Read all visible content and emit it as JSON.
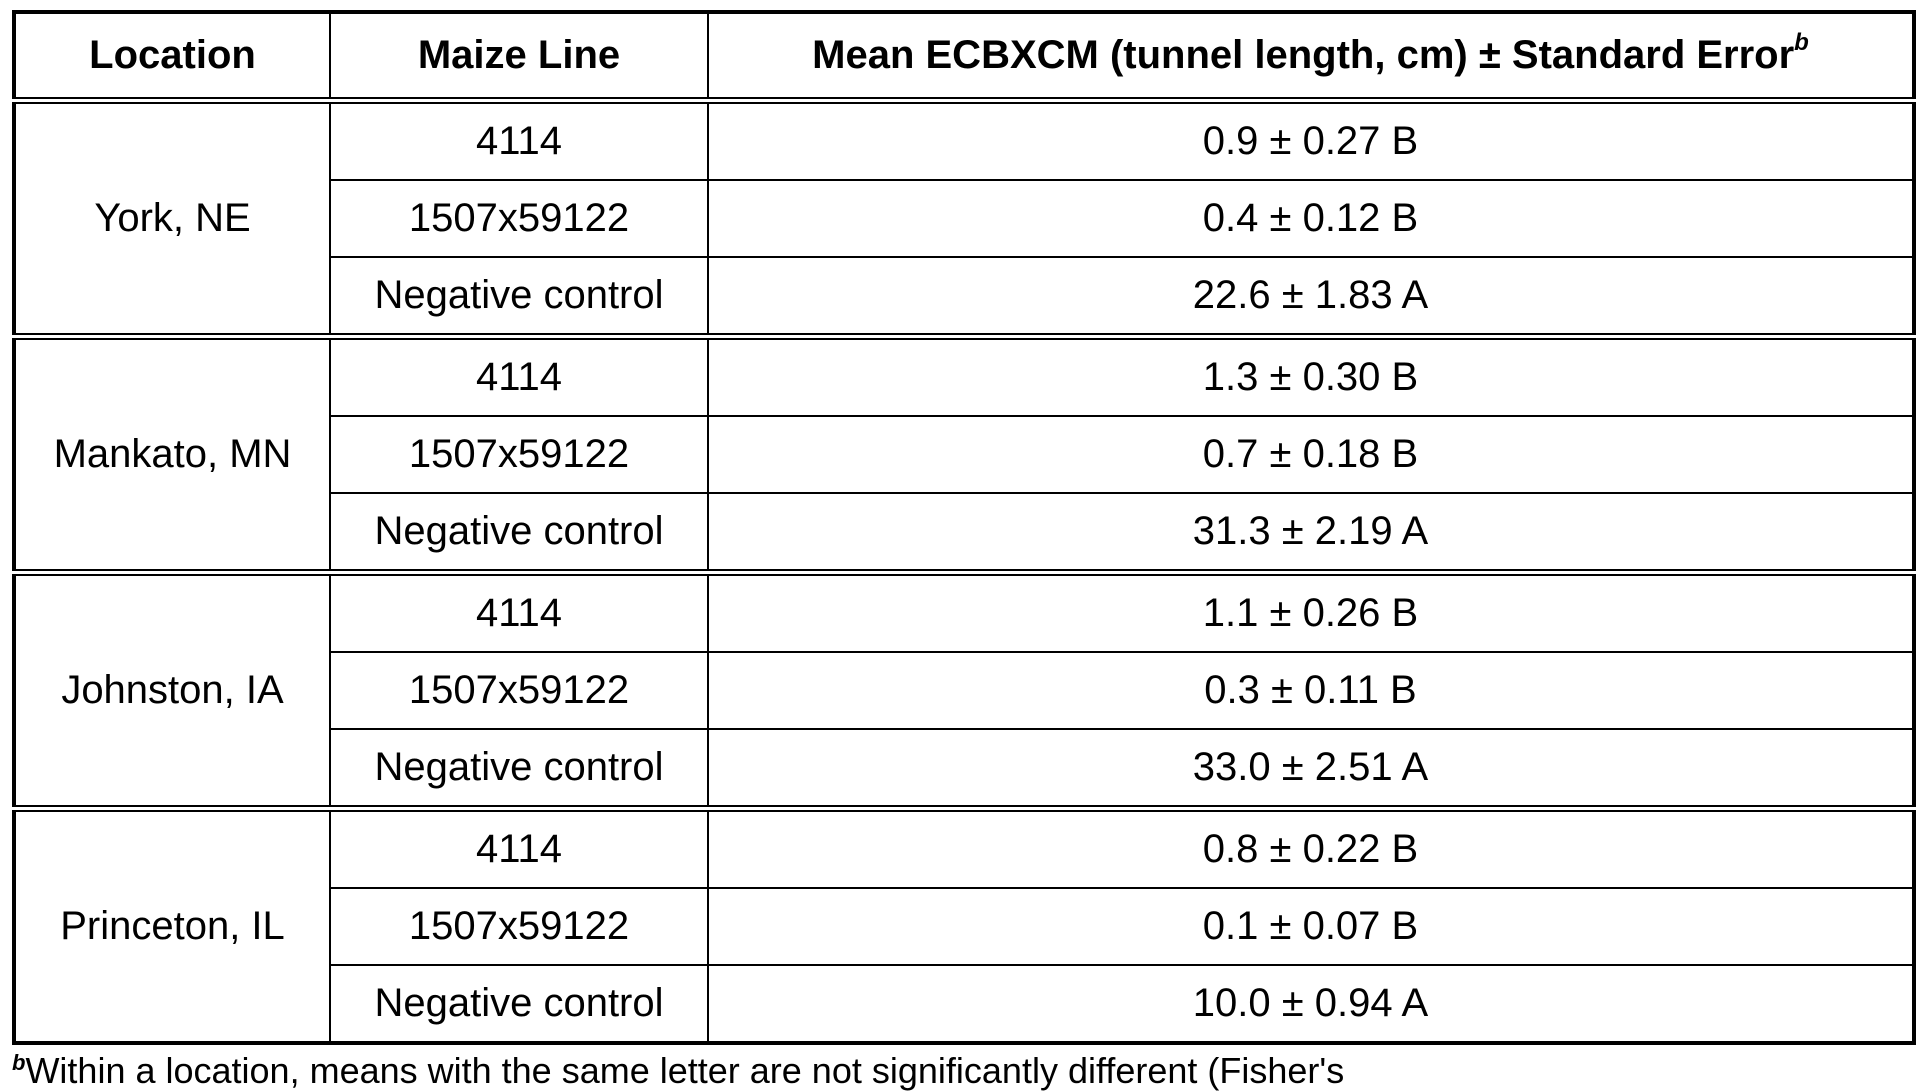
{
  "header": {
    "location": "Location",
    "maize_line": "Maize Line",
    "mean": "Mean ECBXCM (tunnel length, cm)  ± Standard Error",
    "mean_sup": "b"
  },
  "groups": [
    {
      "location": "York, NE",
      "rows": [
        {
          "line": "4114",
          "value": "0.9 ± 0.27 B"
        },
        {
          "line": "1507x59122",
          "value": "0.4 ± 0.12 B"
        },
        {
          "line": "Negative control",
          "value": "22.6 ± 1.83 A"
        }
      ]
    },
    {
      "location": "Mankato, MN",
      "rows": [
        {
          "line": "4114",
          "value": "1.3 ± 0.30 B"
        },
        {
          "line": "1507x59122",
          "value": "0.7 ± 0.18 B"
        },
        {
          "line": "Negative control",
          "value": "31.3 ± 2.19 A"
        }
      ]
    },
    {
      "location": "Johnston, IA",
      "rows": [
        {
          "line": "4114",
          "value": "1.1 ± 0.26 B"
        },
        {
          "line": "1507x59122",
          "value": "0.3 ± 0.11 B"
        },
        {
          "line": "Negative control",
          "value": "33.0 ± 2.51 A"
        }
      ]
    },
    {
      "location": "Princeton, IL",
      "rows": [
        {
          "line": "4114",
          "value": "0.8 ± 0.22 B"
        },
        {
          "line": "1507x59122",
          "value": "0.1 ± 0.07 B"
        },
        {
          "line": "Negative control",
          "value": "10.0 ± 0.94 A"
        }
      ]
    }
  ],
  "footnote": {
    "mark": "b",
    "text": "Within a location, means with the same letter are not significantly different (Fisher's"
  }
}
